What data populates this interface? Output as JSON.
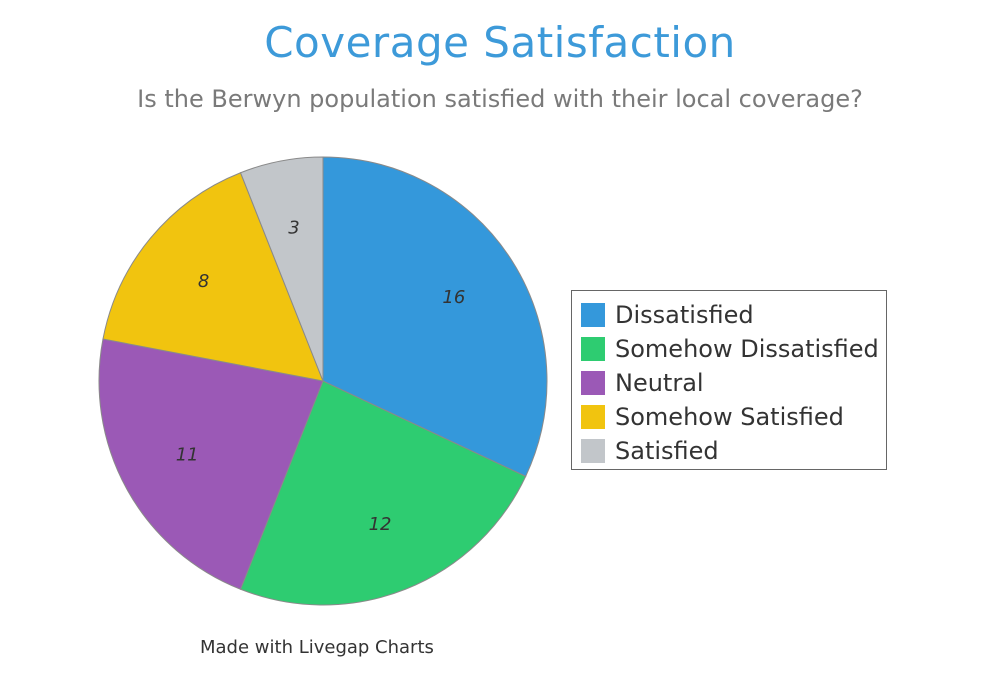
{
  "chart_data": {
    "type": "pie",
    "title": "Coverage Satisfaction",
    "subtitle": "Is the Berwyn population satisfied with their local coverage?",
    "categories": [
      "Dissatisfied",
      "Somehow Dissatisfied",
      "Neutral",
      "Somehow Satisfied",
      "Satisfied"
    ],
    "values": [
      16,
      12,
      11,
      8,
      3
    ],
    "colors": [
      "#3498db",
      "#2ecc71",
      "#9b59b6",
      "#f1c40f",
      "#c2c6ca"
    ],
    "value_labels": [
      "16",
      "12",
      "11",
      "8",
      "3"
    ],
    "legend_position": "right",
    "start_angle": "top",
    "direction": "clockwise"
  },
  "footer": {
    "credit": "Made with Livegap Charts"
  }
}
